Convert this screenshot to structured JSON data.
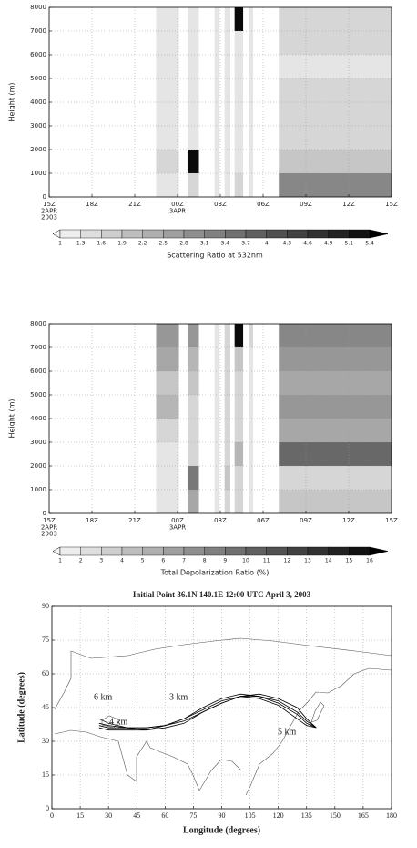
{
  "chart_data": [
    {
      "type": "heatmap",
      "ylabel": "Height (m)",
      "colorbar_label": "Scattering Ratio at 532nm",
      "xlim": [
        0,
        24
      ],
      "xticks": [
        {
          "value": 0,
          "label": "15Z\n2APR\n2003"
        },
        {
          "value": 3,
          "label": "18Z"
        },
        {
          "value": 6,
          "label": "21Z"
        },
        {
          "value": 9,
          "label": "00Z\n3APR"
        },
        {
          "value": 12,
          "label": "03Z"
        },
        {
          "value": 15,
          "label": "06Z"
        },
        {
          "value": 18,
          "label": "09Z"
        },
        {
          "value": 21,
          "label": "12Z"
        },
        {
          "value": 24,
          "label": "15Z"
        }
      ],
      "ylim": [
        0,
        8000
      ],
      "yticks": [
        0,
        1000,
        2000,
        3000,
        4000,
        5000,
        6000,
        7000,
        8000
      ],
      "grid": true,
      "ybins": [
        0,
        1000,
        2000,
        3000,
        4000,
        5000,
        6000,
        7000,
        8000
      ],
      "x": [
        7.5,
        9.7,
        11.6,
        12.3,
        13.0,
        14.0,
        16.1
      ],
      "x2": [
        9.1,
        10.5,
        11.9,
        12.7,
        13.6,
        14.3,
        24
      ],
      "values": [
        [
          1.3,
          1.6,
          1.3,
          1.3,
          1.3,
          1.3,
          1.3,
          1.3
        ],
        [
          1.6,
          5.4,
          1.3,
          1.3,
          1.3,
          1.3,
          1.3,
          1.3
        ],
        [
          1.3,
          1.3,
          1.3,
          1.3,
          1.3,
          1.3,
          1.3,
          1.3
        ],
        [
          1.3,
          1.3,
          1.3,
          1.3,
          1.3,
          1.3,
          1.3,
          1.3
        ],
        [
          1.6,
          1.3,
          1.3,
          1.3,
          1.3,
          1.3,
          1.3,
          5.4
        ],
        [
          1.3,
          1.3,
          1.3,
          1.3,
          1.3,
          1.3,
          1.3,
          1.3
        ],
        [
          3.1,
          1.9,
          1.6,
          1.6,
          1.6,
          1.3,
          1.6,
          1.6
        ]
      ],
      "colorbar_ticks": [
        1,
        1.3,
        1.6,
        1.9,
        2.2,
        2.5,
        2.8,
        3.1,
        3.4,
        3.7,
        4,
        4.3,
        4.6,
        4.9,
        5.1,
        5.4
      ]
    },
    {
      "type": "heatmap",
      "ylabel": "Height (m)",
      "colorbar_label": "Total Depolarization Ratio (%)",
      "xlim": [
        0,
        24
      ],
      "xticks": [
        {
          "value": 0,
          "label": "15Z\n2APR\n2003"
        },
        {
          "value": 3,
          "label": "18Z"
        },
        {
          "value": 6,
          "label": "21Z"
        },
        {
          "value": 9,
          "label": "00Z\n3APR"
        },
        {
          "value": 12,
          "label": "03Z"
        },
        {
          "value": 15,
          "label": "06Z"
        },
        {
          "value": 18,
          "label": "09Z"
        },
        {
          "value": 21,
          "label": "12Z"
        },
        {
          "value": 24,
          "label": "15Z"
        }
      ],
      "ylim": [
        0,
        8000
      ],
      "yticks": [
        0,
        1000,
        2000,
        3000,
        4000,
        5000,
        6000,
        7000,
        8000
      ],
      "grid": true,
      "ybins": [
        0,
        1000,
        2000,
        3000,
        4000,
        5000,
        6000,
        7000,
        8000
      ],
      "x": [
        7.5,
        9.7,
        11.6,
        12.3,
        13.0,
        14.0,
        16.1
      ],
      "x2": [
        9.1,
        10.5,
        11.9,
        12.7,
        13.6,
        14.3,
        24
      ],
      "values": [
        [
          2,
          2,
          2,
          3,
          5,
          4,
          6,
          7
        ],
        [
          6,
          9,
          3,
          3,
          3,
          4,
          5,
          7
        ],
        [
          2,
          2,
          2,
          2,
          2,
          2,
          2,
          2
        ],
        [
          3,
          4,
          3,
          3,
          3,
          3,
          3,
          3
        ],
        [
          3,
          3,
          5,
          3,
          3,
          3,
          4,
          16
        ],
        [
          2,
          2,
          2,
          2,
          2,
          2,
          2,
          3
        ],
        [
          4,
          3,
          10,
          6,
          7,
          6,
          7,
          8
        ]
      ],
      "colorbar_ticks": [
        1,
        2,
        3,
        4,
        5,
        6,
        7,
        8,
        9,
        10,
        11,
        12,
        13,
        14,
        15,
        16
      ]
    },
    {
      "type": "line",
      "title": "Initial Point  36.1N 140.1E  12:00 UTC April 3, 2003",
      "xlabel": "Longitude (degrees)",
      "ylabel": "Latitude (degrees)",
      "xlim": [
        0,
        180
      ],
      "xticks": [
        0,
        15,
        30,
        45,
        60,
        75,
        90,
        105,
        120,
        135,
        150,
        165,
        180
      ],
      "ylim": [
        0,
        90
      ],
      "yticks": [
        0,
        15,
        30,
        45,
        60,
        75,
        90
      ],
      "grid": true,
      "x": [
        140.1,
        135,
        130,
        120,
        110,
        100,
        90,
        80,
        70,
        60,
        50,
        40,
        30,
        25
      ],
      "series": [
        {
          "color": "#000000",
          "values": [
            36.1,
            38,
            42,
            47,
            50,
            51,
            49,
            45,
            40,
            37,
            36,
            36,
            37,
            38
          ]
        },
        {
          "color": "#000000",
          "values": [
            36.1,
            40,
            45,
            49,
            51,
            50,
            47,
            43,
            39,
            37,
            36,
            36,
            36,
            37
          ]
        },
        {
          "color": "#000000",
          "values": [
            36.1,
            37,
            40,
            46,
            49,
            50,
            48,
            44,
            40,
            37,
            35,
            35,
            35,
            36
          ]
        },
        {
          "color": "#000000",
          "values": [
            36.1,
            39,
            43,
            48,
            50,
            50,
            47,
            43,
            38,
            36,
            35,
            36,
            38,
            40
          ]
        }
      ],
      "annotations": [
        "6 km",
        "3 km",
        "4 km",
        "5 km"
      ]
    }
  ]
}
